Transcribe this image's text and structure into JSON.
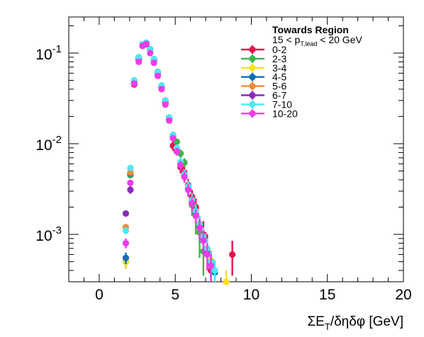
{
  "chart_data": {
    "type": "scatter",
    "title": "",
    "xlabel": "ΣE_T/δηδφ [GeV]",
    "ylabel": "",
    "xlim": [
      -2,
      20
    ],
    "ylim": [
      0.0003,
      0.25
    ],
    "yscale": "log",
    "grid": false,
    "legend": {
      "placement": "top-right",
      "title": "Towards Region",
      "subtitle_parts": {
        "lhs": "15 < p",
        "sub": "T,lead",
        "rhs": " < 20 GeV"
      }
    },
    "x_ticks": [
      "0",
      "5",
      "10",
      "15",
      "20"
    ],
    "y_ticks": [
      {
        "base": "10",
        "exp": "-3",
        "value": 0.001
      },
      {
        "base": "10",
        "exp": "-2",
        "value": 0.01
      },
      {
        "base": "10",
        "exp": "-1",
        "value": 0.1
      }
    ],
    "series": [
      {
        "name": "0-2",
        "color": "#e3134b",
        "x": [
          1.75,
          2.05,
          2.3,
          2.6,
          2.85,
          3.1,
          3.35,
          3.6,
          3.85,
          4.1,
          4.35,
          4.6,
          4.85,
          5.1,
          5.35,
          5.6,
          5.85,
          6.1,
          6.35,
          6.6,
          6.85,
          7.1,
          7.35,
          8.75
        ],
        "y": [
          0.0005,
          0.0045,
          0.045,
          0.085,
          0.12,
          0.125,
          0.11,
          0.085,
          0.06,
          0.042,
          0.028,
          0.0185,
          0.0095,
          0.0085,
          0.0055,
          0.0048,
          0.0035,
          0.0026,
          0.002,
          0.0012,
          0.001,
          0.0007,
          0.0004,
          0.0006
        ],
        "err": [
          8e-05,
          0.0003,
          0.002,
          0.003,
          0.004,
          0.004,
          0.004,
          0.003,
          0.0025,
          0.002,
          0.0015,
          0.0012,
          0.0012,
          0.001,
          0.0008,
          0.0008,
          0.0006,
          0.0005,
          0.0005,
          0.0004,
          0.0004,
          0.0003,
          0.00012,
          0.00025
        ]
      },
      {
        "name": "2-3",
        "color": "#3db54a",
        "x": [
          1.75,
          2.05,
          2.3,
          2.6,
          2.85,
          3.1,
          3.35,
          3.6,
          3.85,
          4.1,
          4.35,
          4.6,
          4.85,
          5.1,
          5.35,
          5.6,
          5.85,
          6.1,
          6.35,
          6.6,
          6.85
        ],
        "y": [
          0.0005,
          0.0045,
          0.05,
          0.09,
          0.125,
          0.13,
          0.11,
          0.085,
          0.062,
          0.043,
          0.029,
          0.019,
          0.0125,
          0.0105,
          0.0078,
          0.0062,
          0.0032,
          0.0021,
          0.0016,
          0.00105,
          0.00065
        ],
        "err": [
          8e-05,
          0.0003,
          0.002,
          0.003,
          0.004,
          0.004,
          0.004,
          0.003,
          0.0025,
          0.002,
          0.0015,
          0.0012,
          0.001,
          0.0009,
          0.0008,
          0.0007,
          0.0006,
          0.0005,
          0.0006,
          0.0005,
          0.0003
        ]
      },
      {
        "name": "3-4",
        "color": "#f8e21e",
        "x": [
          1.75,
          2.05,
          2.3,
          2.6,
          2.85,
          3.1,
          3.35,
          3.6,
          3.85,
          4.1,
          4.35,
          4.6,
          4.85,
          5.1,
          5.35,
          5.6,
          5.85,
          6.1,
          6.35,
          6.6,
          6.85,
          7.1,
          7.35,
          7.6,
          8.35
        ],
        "y": [
          0.0005,
          0.0048,
          0.048,
          0.088,
          0.125,
          0.13,
          0.11,
          0.085,
          0.061,
          0.043,
          0.029,
          0.019,
          0.012,
          0.0085,
          0.006,
          0.0045,
          0.0033,
          0.0024,
          0.0018,
          0.0013,
          0.0009,
          0.0007,
          0.00052,
          0.0004,
          0.0003
        ],
        "err": [
          8e-05,
          0.0003,
          0.002,
          0.003,
          0.004,
          0.004,
          0.004,
          0.003,
          0.0025,
          0.002,
          0.0015,
          0.0012,
          0.001,
          0.0008,
          0.0007,
          0.0006,
          0.0005,
          0.0004,
          0.0003,
          0.0003,
          0.00025,
          0.0002,
          0.00015,
          0.00012,
          0.0001
        ]
      },
      {
        "name": "4-5",
        "color": "#0f6fb5",
        "x": [
          1.75,
          2.05,
          2.3,
          2.6,
          2.85,
          3.1,
          3.35,
          3.6,
          3.85,
          4.1,
          4.35,
          4.6,
          4.85,
          5.1,
          5.35,
          5.6,
          5.85,
          6.1,
          6.35,
          6.6,
          6.85,
          7.1,
          7.35,
          7.6
        ],
        "y": [
          0.00055,
          0.0047,
          0.049,
          0.089,
          0.125,
          0.13,
          0.11,
          0.086,
          0.062,
          0.043,
          0.03,
          0.0195,
          0.0125,
          0.0088,
          0.0062,
          0.0046,
          0.0034,
          0.0024,
          0.0018,
          0.0013,
          0.00095,
          0.0007,
          0.0005,
          0.00038
        ],
        "err": [
          8e-05,
          0.0003,
          0.002,
          0.003,
          0.004,
          0.004,
          0.004,
          0.003,
          0.0025,
          0.002,
          0.0015,
          0.0012,
          0.001,
          0.0008,
          0.0007,
          0.0006,
          0.0005,
          0.0004,
          0.0003,
          0.0003,
          0.00025,
          0.0002,
          0.00015,
          0.00012
        ]
      },
      {
        "name": "5-6",
        "color": "#f18b3a",
        "x": [
          1.75,
          2.05,
          2.3,
          2.6,
          2.85,
          3.1,
          3.35,
          3.6,
          3.85,
          4.1,
          4.35,
          4.6,
          4.85,
          5.1,
          5.35,
          5.6,
          5.85,
          6.1,
          6.35,
          6.6,
          6.85,
          7.1,
          7.35
        ],
        "y": [
          0.0012,
          0.0048,
          0.048,
          0.088,
          0.124,
          0.13,
          0.11,
          0.085,
          0.061,
          0.043,
          0.029,
          0.019,
          0.012,
          0.0087,
          0.0061,
          0.0045,
          0.0032,
          0.0023,
          0.0017,
          0.0012,
          0.0009,
          0.00065,
          0.00048
        ],
        "err": [
          0.0001,
          0.0003,
          0.002,
          0.003,
          0.004,
          0.004,
          0.004,
          0.003,
          0.0025,
          0.002,
          0.0015,
          0.0012,
          0.001,
          0.0008,
          0.0007,
          0.0006,
          0.0005,
          0.0004,
          0.0003,
          0.0003,
          0.00025,
          0.0002,
          0.00015
        ]
      },
      {
        "name": "6-7",
        "color": "#8a2cb8",
        "x": [
          1.75,
          2.05,
          2.3,
          2.6,
          2.85,
          3.1,
          3.35,
          3.6,
          3.85,
          4.1,
          4.35,
          4.6,
          4.85,
          5.1,
          5.35,
          5.6,
          5.85,
          6.1,
          6.35,
          6.6,
          6.85,
          7.1,
          7.35
        ],
        "y": [
          0.0017,
          0.0031,
          0.047,
          0.087,
          0.124,
          0.129,
          0.11,
          0.084,
          0.06,
          0.042,
          0.029,
          0.019,
          0.012,
          0.0086,
          0.006,
          0.0044,
          0.0032,
          0.0023,
          0.0017,
          0.0012,
          0.00088,
          0.00063,
          0.00046
        ],
        "err": [
          0.00012,
          0.0003,
          0.002,
          0.003,
          0.004,
          0.004,
          0.004,
          0.003,
          0.0025,
          0.002,
          0.0015,
          0.0012,
          0.001,
          0.0008,
          0.0007,
          0.0006,
          0.0005,
          0.0004,
          0.0003,
          0.0003,
          0.00025,
          0.0002,
          0.00015
        ]
      },
      {
        "name": "7-10",
        "color": "#4ee8ef",
        "x": [
          1.75,
          2.05,
          2.3,
          2.6,
          2.85,
          3.1,
          3.35,
          3.6,
          3.85,
          4.1,
          4.35,
          4.6,
          4.85,
          5.1,
          5.35,
          5.6,
          5.85,
          6.1,
          6.35,
          6.6,
          6.85,
          7.1,
          7.35,
          7.6
        ],
        "y": [
          0.0011,
          0.0054,
          0.05,
          0.09,
          0.125,
          0.13,
          0.11,
          0.086,
          0.062,
          0.044,
          0.03,
          0.0195,
          0.0125,
          0.009,
          0.0063,
          0.0046,
          0.0034,
          0.0024,
          0.0018,
          0.0013,
          0.00095,
          0.0007,
          0.0005,
          0.0004
        ],
        "err": [
          0.0001,
          0.0003,
          0.002,
          0.003,
          0.004,
          0.004,
          0.004,
          0.003,
          0.0025,
          0.002,
          0.0015,
          0.0012,
          0.001,
          0.0008,
          0.0007,
          0.0006,
          0.0005,
          0.0004,
          0.0003,
          0.0003,
          0.00025,
          0.0002,
          0.00015,
          0.00012
        ]
      },
      {
        "name": "10-20",
        "color": "#f03ae8",
        "x": [
          1.75,
          2.05,
          2.3,
          2.6,
          2.85,
          3.1,
          3.35,
          3.6,
          3.85,
          4.1,
          4.35,
          4.6,
          4.85,
          5.1,
          5.35,
          5.6,
          5.85,
          6.1,
          6.35,
          6.6,
          6.85,
          7.1,
          7.35
        ],
        "y": [
          0.0008,
          0.0037,
          0.046,
          0.08,
          0.12,
          0.126,
          0.1,
          0.078,
          0.056,
          0.04,
          0.027,
          0.018,
          0.0115,
          0.0082,
          0.0058,
          0.0043,
          0.0031,
          0.0022,
          0.0016,
          0.00118,
          0.00085,
          0.0006,
          0.00045
        ],
        "err": [
          0.0001,
          0.0003,
          0.002,
          0.003,
          0.004,
          0.004,
          0.004,
          0.003,
          0.0025,
          0.002,
          0.0015,
          0.0012,
          0.001,
          0.0008,
          0.0007,
          0.0006,
          0.0005,
          0.0004,
          0.0003,
          0.0003,
          0.00025,
          0.0002,
          0.00015
        ]
      }
    ]
  }
}
